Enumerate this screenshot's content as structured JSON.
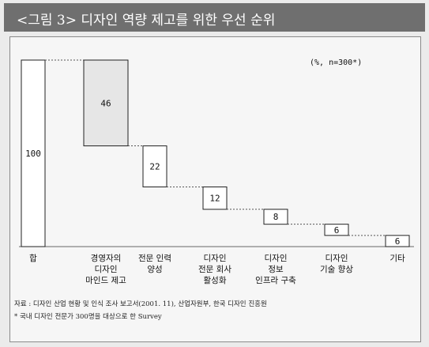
{
  "title": "<그림 3> 디자인 역량 제고를 위한 우선 순위",
  "chart_data": {
    "type": "bar",
    "subtype": "waterfall",
    "unit_note": "(%, n=300*)",
    "categories": [
      [
        "합"
      ],
      [
        "경영자의",
        "디자인",
        "마인드 제고"
      ],
      [
        "전문 인력",
        "양성"
      ],
      [
        "디자인",
        "전문 회사",
        "활성화"
      ],
      [
        "디자인",
        "정보",
        "인프라 구축"
      ],
      [
        "디자인",
        "기술 향상"
      ],
      [
        "기타"
      ]
    ],
    "values": [
      100,
      46,
      22,
      12,
      8,
      6,
      6
    ],
    "base": [
      0,
      54,
      32,
      20,
      12,
      6,
      0
    ],
    "total_index": 0,
    "ylim": [
      0,
      100
    ],
    "bar_colors": {
      "total": "#ffffff",
      "highlight": "#e6e6e6",
      "default": "#ffffff"
    },
    "highlight_index": 1,
    "grid": false
  },
  "footnotes": {
    "source": "자료 : 디자인 산업 현황 및 인식 조사 보고서(2001. 11), 산업자원부, 한국 디자인 진흥원",
    "note": "* 국내 디자인 전문가 300명을 대상으로 한 Survey"
  }
}
